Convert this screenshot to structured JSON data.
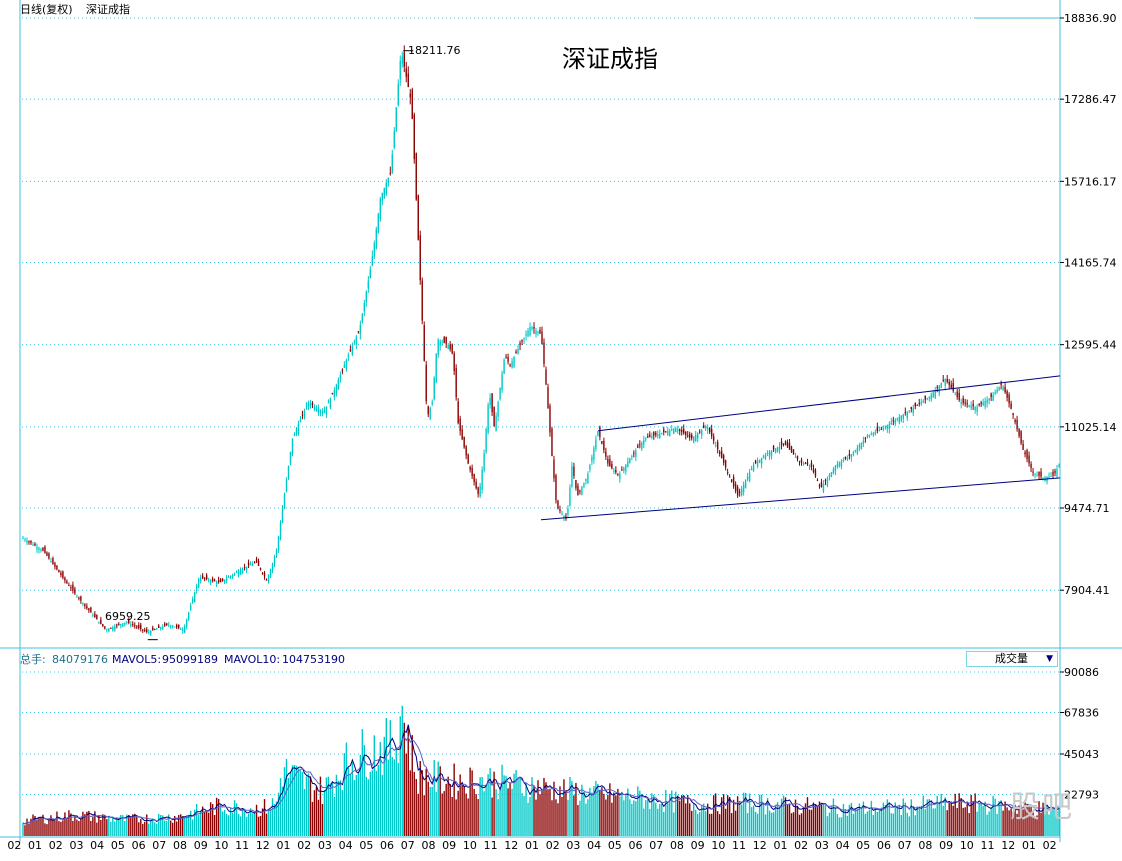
{
  "header": {
    "chart_mode": "日线(复权)",
    "instrument": "深证成指"
  },
  "chart_title": "深证成指",
  "price_labels": {
    "high": "18211.76",
    "low": "6959.25"
  },
  "volume_bar": {
    "total_label": "总手:",
    "total_value": "84079176",
    "mavol5_label": "MAVOL5:",
    "mavol5_value": "95099189",
    "mavol10_label": "MAVOL10:",
    "mavol10_value": "104753190",
    "indicator_select": "成交量",
    "dropdown_icon": "triangle-down-icon"
  },
  "colors": {
    "up": "#00c8c8",
    "down": "#8b0000",
    "grid": "#40c0e0",
    "trend": "#000080",
    "ma": "#000080"
  },
  "chart_data": [
    {
      "type": "candlestick",
      "title": "深证成指",
      "y_ticks": [
        "18836.90",
        "17286.47",
        "15716.17",
        "14165.74",
        "12595.44",
        "11025.14",
        "9474.71",
        "7904.41"
      ],
      "ylim": [
        6800,
        18836.9
      ],
      "x_month_labels": [
        "02",
        "01",
        "02",
        "03",
        "04",
        "05",
        "06",
        "07",
        "08",
        "09",
        "10",
        "11",
        "12",
        "01",
        "02",
        "03",
        "04",
        "05",
        "06",
        "07",
        "08",
        "09",
        "10",
        "11",
        "12",
        "01",
        "02",
        "03",
        "04",
        "05",
        "06",
        "07",
        "08",
        "09",
        "10",
        "11",
        "12",
        "01",
        "02",
        "03",
        "04",
        "05",
        "06",
        "07",
        "08",
        "09",
        "10",
        "11",
        "12",
        "01",
        "02"
      ],
      "close_path_x_fraction": [
        0.0,
        0.02,
        0.04,
        0.06,
        0.08,
        0.1,
        0.12,
        0.14,
        0.155,
        0.17,
        0.19,
        0.21,
        0.225,
        0.235,
        0.24,
        0.245,
        0.26,
        0.275,
        0.29,
        0.3,
        0.31,
        0.325,
        0.335,
        0.34,
        0.345,
        0.355,
        0.365,
        0.375,
        0.385,
        0.39,
        0.395,
        0.4,
        0.41,
        0.415,
        0.42,
        0.43,
        0.44,
        0.445,
        0.45,
        0.455,
        0.465,
        0.47,
        0.48,
        0.49,
        0.5,
        0.505,
        0.51,
        0.515,
        0.525,
        0.53,
        0.535,
        0.545,
        0.555,
        0.565,
        0.575,
        0.585,
        0.6,
        0.615,
        0.63,
        0.645,
        0.66,
        0.675,
        0.69,
        0.705,
        0.72,
        0.735,
        0.75,
        0.76,
        0.77,
        0.785,
        0.8,
        0.815,
        0.83,
        0.845,
        0.86,
        0.875,
        0.89,
        0.905,
        0.92,
        0.935,
        0.945,
        0.955,
        0.965,
        0.975,
        0.985,
        0.995,
        1.0
      ],
      "close_values": [
        8900,
        8650,
        8100,
        7600,
        7150,
        7300,
        7100,
        7250,
        7150,
        8150,
        8050,
        8300,
        8450,
        8100,
        8350,
        8700,
        10800,
        11500,
        11300,
        11700,
        12200,
        12900,
        14000,
        14650,
        15400,
        15900,
        18211.76,
        17200,
        13200,
        11200,
        11500,
        12700,
        12600,
        12400,
        11100,
        10300,
        9700,
        10500,
        11700,
        11000,
        12400,
        12200,
        12600,
        12950,
        12800,
        11800,
        10600,
        9500,
        9250,
        10300,
        9700,
        10100,
        10950,
        10300,
        10100,
        10400,
        10800,
        10900,
        11000,
        10800,
        11050,
        10400,
        9700,
        10300,
        10550,
        10700,
        10350,
        10300,
        9850,
        10300,
        10500,
        10850,
        11000,
        11200,
        11400,
        11600,
        11950,
        11500,
        11400,
        11600,
        11850,
        11300,
        10600,
        10150,
        10050,
        10100,
        10300
      ]
    },
    {
      "type": "bar",
      "title": "成交量",
      "y_ticks": [
        "90086",
        "67836",
        "45043",
        "22793"
      ],
      "ylim": [
        0,
        90086
      ],
      "envelope_x_fraction": [
        0.0,
        0.05,
        0.1,
        0.15,
        0.19,
        0.23,
        0.245,
        0.25,
        0.27,
        0.29,
        0.31,
        0.33,
        0.35,
        0.36,
        0.365,
        0.37,
        0.38,
        0.4,
        0.42,
        0.45,
        0.5,
        0.55,
        0.6,
        0.65,
        0.7,
        0.75,
        0.8,
        0.85,
        0.9,
        0.95,
        1.0
      ],
      "envelope_values": [
        10000,
        14000,
        11000,
        13000,
        20000,
        18000,
        22000,
        44000,
        36000,
        30000,
        47000,
        56000,
        59000,
        60000,
        88000,
        70000,
        40000,
        38000,
        36000,
        37000,
        32000,
        28000,
        25000,
        21000,
        22000,
        20000,
        18000,
        19000,
        22000,
        20000,
        17000
      ]
    }
  ]
}
